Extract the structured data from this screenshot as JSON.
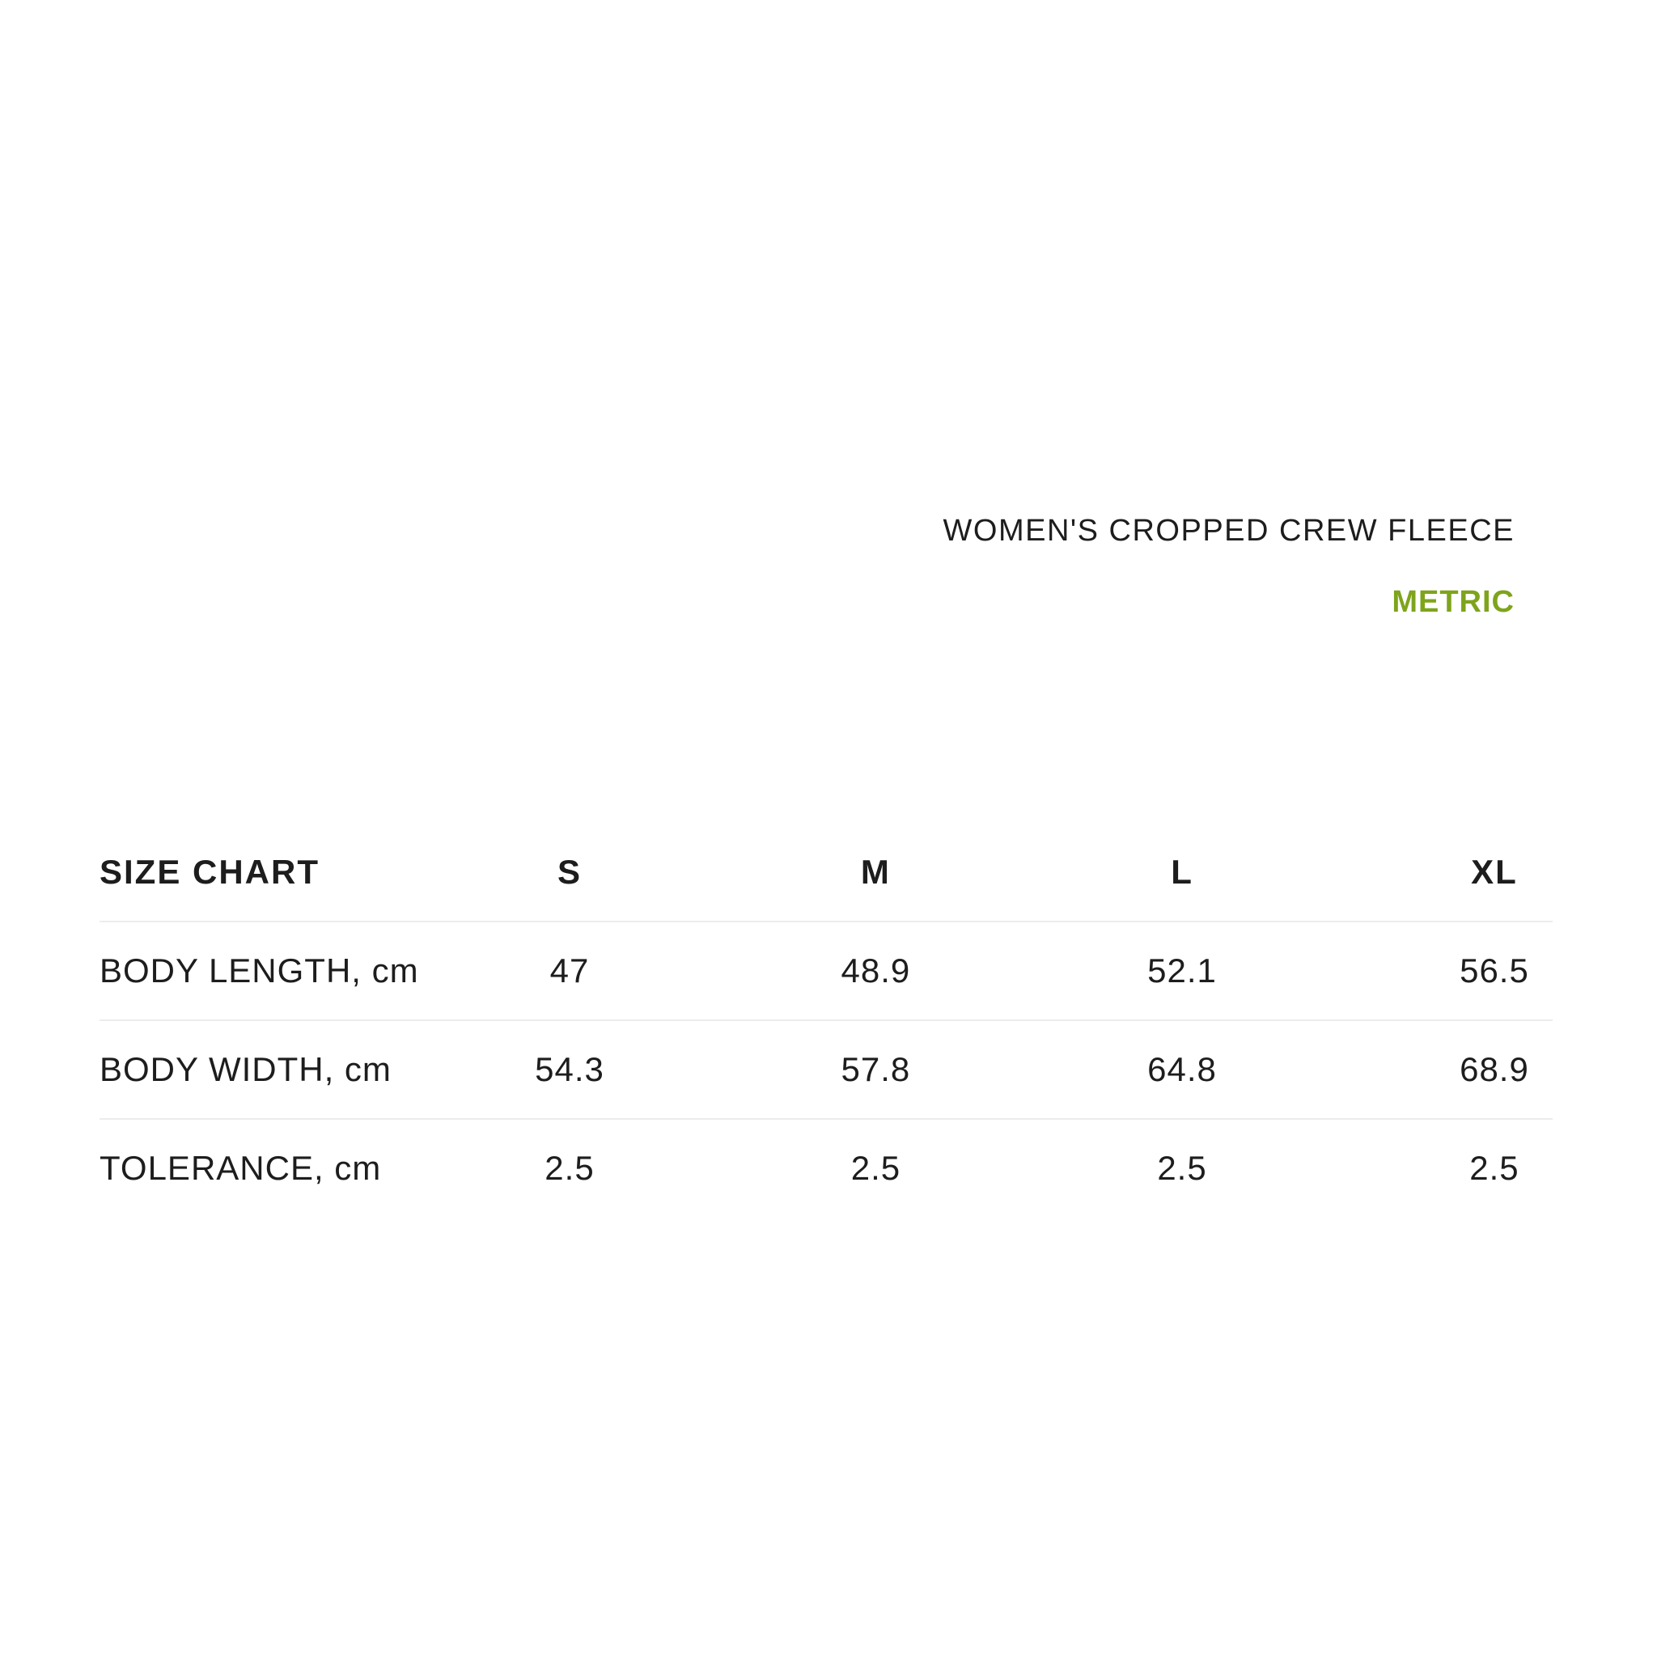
{
  "header": {
    "product_title": "WOMEN'S CROPPED CREW FLEECE",
    "unit_toggle_label": "METRIC",
    "accent_color": "#7ea41c"
  },
  "size_chart": {
    "title": "SIZE CHART",
    "sizes": [
      "S",
      "M",
      "L",
      "XL"
    ],
    "rows": [
      {
        "label": "BODY LENGTH, cm",
        "values": [
          "47",
          "48.9",
          "52.1",
          "56.5"
        ]
      },
      {
        "label": "BODY WIDTH, cm",
        "values": [
          "54.3",
          "57.8",
          "64.8",
          "68.9"
        ]
      },
      {
        "label": "TOLERANCE, cm",
        "values": [
          "2.5",
          "2.5",
          "2.5",
          "2.5"
        ]
      }
    ]
  }
}
